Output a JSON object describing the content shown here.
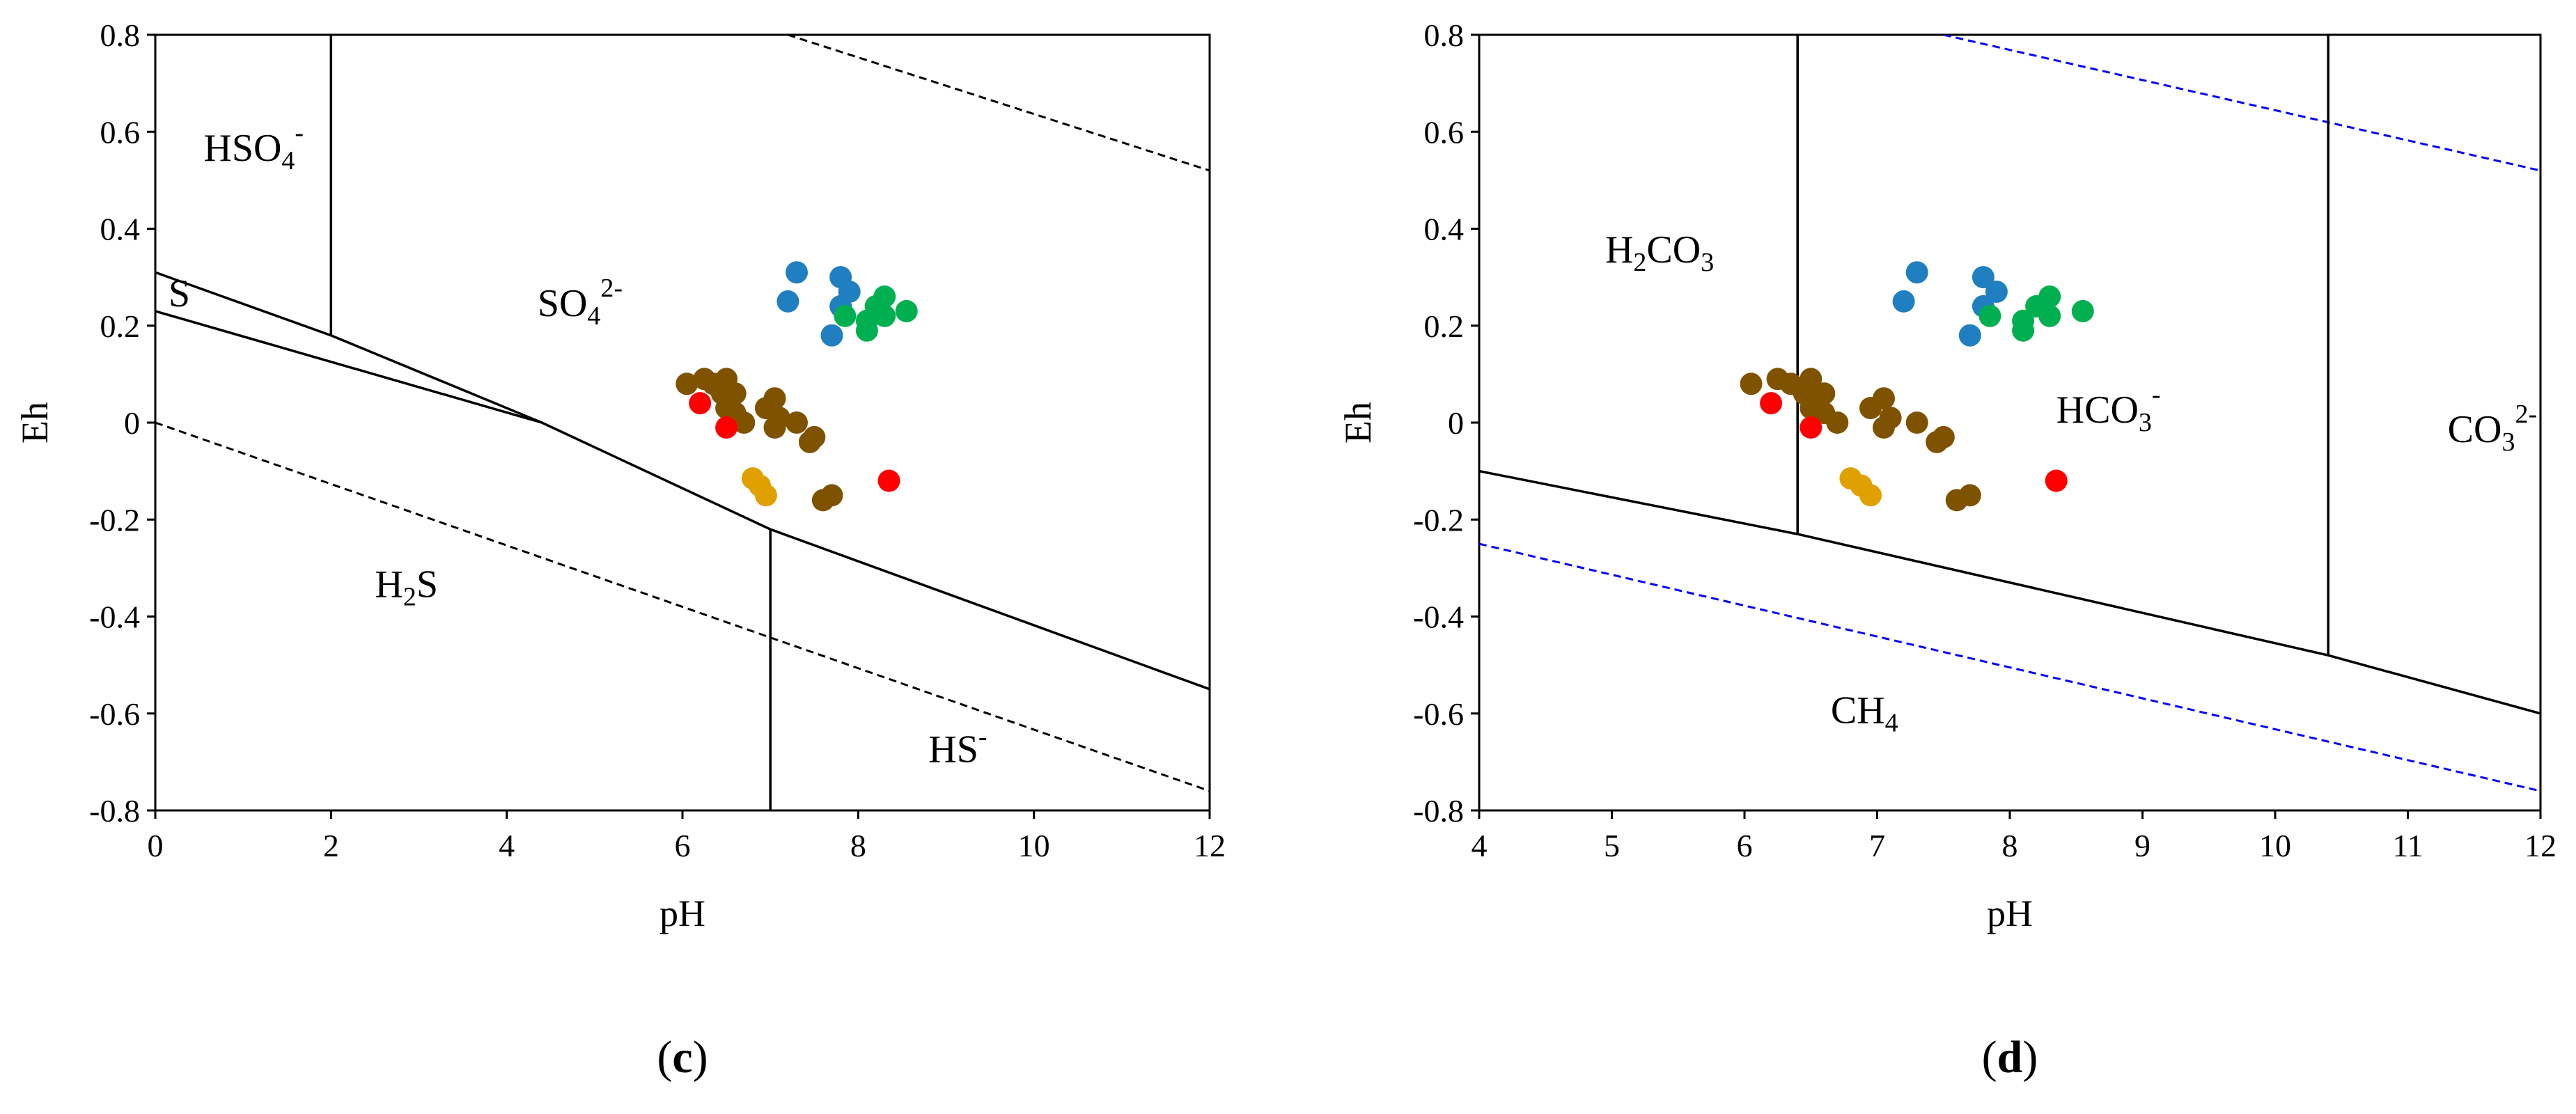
{
  "chart_data": [
    {
      "type": "scatter",
      "panel_label": {
        "open": "(",
        "letter": "c",
        "close": ")"
      },
      "xlabel": "pH",
      "ylabel": "Eh",
      "xlim": [
        0,
        12
      ],
      "ylim": [
        -0.8,
        0.8
      ],
      "xticks": [
        0,
        2,
        4,
        6,
        8,
        10,
        12
      ],
      "yticks": [
        -0.8,
        -0.6,
        -0.4,
        -0.2,
        0,
        0.2,
        0.4,
        0.6,
        0.8
      ],
      "ytick_labels": [
        "-0.8",
        "-0.6",
        "-0.4",
        "-0.2",
        "0",
        "0.2",
        "0.4",
        "0.6",
        "0.8"
      ],
      "grid": false,
      "boundaries": [
        {
          "name": "water-upper-limit",
          "style": "dashed",
          "color": "#000000",
          "points": [
            [
              7.2,
              0.8
            ],
            [
              12,
              0.52
            ]
          ]
        },
        {
          "name": "water-lower-limit",
          "style": "dashed",
          "color": "#000000",
          "points": [
            [
              0,
              0
            ],
            [
              12,
              -0.76
            ]
          ]
        },
        {
          "name": "hso4-so4-boundary",
          "style": "solid",
          "color": "#000000",
          "points": [
            [
              2,
              0.8
            ],
            [
              2,
              0.18
            ]
          ]
        },
        {
          "name": "sulfur-upper-boundary",
          "style": "solid",
          "color": "#000000",
          "points": [
            [
              0,
              0.31
            ],
            [
              2,
              0.18
            ],
            [
              4.4,
              0
            ],
            [
              7,
              -0.22
            ],
            [
              12,
              -0.55
            ]
          ]
        },
        {
          "name": "sulfur-lower-boundary",
          "style": "solid",
          "color": "#000000",
          "points": [
            [
              0,
              0.23
            ],
            [
              4.4,
              0
            ]
          ]
        },
        {
          "name": "h2s-hs-boundary",
          "style": "solid",
          "color": "#000000",
          "points": [
            [
              7,
              -0.22
            ],
            [
              7,
              -0.8
            ]
          ]
        }
      ],
      "region_labels": [
        {
          "base": "HSO",
          "sub": "4",
          "sup": "-",
          "x": 0.55,
          "y": 0.54
        },
        {
          "base": "S",
          "sub": "",
          "sup": "",
          "x": 0.15,
          "y": 0.24
        },
        {
          "base": "SO",
          "sub": "4",
          "sup": "2-",
          "x": 4.35,
          "y": 0.22
        },
        {
          "base": "H",
          "sub": "2",
          "sup": "",
          "after": "S",
          "x": 2.5,
          "y": -0.36
        },
        {
          "base": "HS",
          "sub": "",
          "sup": "-",
          "x": 8.8,
          "y": -0.7
        }
      ],
      "series": [
        {
          "name": "blue",
          "color": "#1f7fc0",
          "points": [
            [
              7.3,
              0.31
            ],
            [
              7.8,
              0.3
            ],
            [
              7.9,
              0.27
            ],
            [
              7.2,
              0.25
            ],
            [
              7.8,
              0.24
            ],
            [
              7.7,
              0.18
            ]
          ]
        },
        {
          "name": "green",
          "color": "#00b050",
          "points": [
            [
              8.3,
              0.26
            ],
            [
              8.2,
              0.24
            ],
            [
              8.55,
              0.23
            ],
            [
              8.3,
              0.22
            ],
            [
              7.85,
              0.22
            ],
            [
              8.1,
              0.21
            ],
            [
              8.1,
              0.19
            ]
          ]
        },
        {
          "name": "brown",
          "color": "#7f5200",
          "points": [
            [
              6.05,
              0.08
            ],
            [
              6.25,
              0.09
            ],
            [
              6.35,
              0.08
            ],
            [
              6.5,
              0.09
            ],
            [
              6.45,
              0.06
            ],
            [
              6.6,
              0.06
            ],
            [
              6.5,
              0.03
            ],
            [
              6.6,
              0.02
            ],
            [
              6.7,
              0.0
            ],
            [
              6.95,
              0.03
            ],
            [
              7.05,
              0.05
            ],
            [
              7.1,
              0.01
            ],
            [
              7.05,
              -0.01
            ],
            [
              7.3,
              0.0
            ],
            [
              7.45,
              -0.04
            ],
            [
              7.5,
              -0.03
            ],
            [
              7.6,
              -0.16
            ],
            [
              7.7,
              -0.15
            ]
          ]
        },
        {
          "name": "red",
          "color": "#ff0000",
          "points": [
            [
              6.2,
              0.04
            ],
            [
              6.5,
              -0.01
            ],
            [
              8.35,
              -0.12
            ]
          ]
        },
        {
          "name": "orange",
          "color": "#e0a000",
          "points": [
            [
              6.8,
              -0.115
            ],
            [
              6.88,
              -0.13
            ],
            [
              6.95,
              -0.15
            ]
          ]
        }
      ]
    },
    {
      "type": "scatter",
      "panel_label": {
        "open": "(",
        "letter": "d",
        "close": ")"
      },
      "xlabel": "pH",
      "ylabel": "Eh",
      "xlim": [
        4,
        12
      ],
      "ylim": [
        -0.8,
        0.8
      ],
      "xticks": [
        4,
        5,
        6,
        7,
        8,
        9,
        10,
        11,
        12
      ],
      "yticks": [
        -0.8,
        -0.6,
        -0.4,
        -0.2,
        0,
        0.2,
        0.4,
        0.6,
        0.8
      ],
      "ytick_labels": [
        "-0.8",
        "-0.6",
        "-0.4",
        "-0.2",
        "0",
        "0.2",
        "0.4",
        "0.6",
        "0.8"
      ],
      "grid": false,
      "boundaries": [
        {
          "name": "water-upper-limit",
          "style": "dashed",
          "color": "#0000ff",
          "points": [
            [
              7.5,
              0.8
            ],
            [
              12,
              0.52
            ]
          ]
        },
        {
          "name": "water-lower-limit",
          "style": "dashed",
          "color": "#0000ff",
          "points": [
            [
              4,
              -0.25
            ],
            [
              12,
              -0.76
            ]
          ]
        },
        {
          "name": "h2co3-hco3-boundary",
          "style": "solid",
          "color": "#000000",
          "points": [
            [
              6.4,
              0.8
            ],
            [
              6.4,
              -0.23
            ]
          ]
        },
        {
          "name": "hco3-co3-boundary",
          "style": "solid",
          "color": "#000000",
          "points": [
            [
              10.4,
              0.8
            ],
            [
              10.4,
              -0.48
            ]
          ]
        },
        {
          "name": "ch4-boundary",
          "style": "solid",
          "color": "#000000",
          "points": [
            [
              4,
              -0.1
            ],
            [
              6.4,
              -0.23
            ],
            [
              10.4,
              -0.48
            ],
            [
              12,
              -0.6
            ]
          ]
        }
      ],
      "region_labels": [
        {
          "base": "H",
          "sub": "2",
          "sup": "",
          "after": "CO",
          "sub2": "3",
          "x": 4.95,
          "y": 0.33
        },
        {
          "base": "HCO",
          "sub": "3",
          "sup": "-",
          "x": 8.35,
          "y": 0.0
        },
        {
          "base": "CO",
          "sub": "3",
          "sup": "2-",
          "x": 11.3,
          "y": -0.04
        },
        {
          "base": "CH",
          "sub": "4",
          "sup": "",
          "x": 6.65,
          "y": -0.62
        }
      ],
      "series": [
        {
          "name": "blue",
          "color": "#1f7fc0",
          "points": [
            [
              7.3,
              0.31
            ],
            [
              7.8,
              0.3
            ],
            [
              7.9,
              0.27
            ],
            [
              7.2,
              0.25
            ],
            [
              7.8,
              0.24
            ],
            [
              7.7,
              0.18
            ]
          ]
        },
        {
          "name": "green",
          "color": "#00b050",
          "points": [
            [
              8.3,
              0.26
            ],
            [
              8.2,
              0.24
            ],
            [
              8.55,
              0.23
            ],
            [
              8.3,
              0.22
            ],
            [
              7.85,
              0.22
            ],
            [
              8.1,
              0.21
            ],
            [
              8.1,
              0.19
            ]
          ]
        },
        {
          "name": "brown",
          "color": "#7f5200",
          "points": [
            [
              6.05,
              0.08
            ],
            [
              6.25,
              0.09
            ],
            [
              6.35,
              0.08
            ],
            [
              6.5,
              0.09
            ],
            [
              6.45,
              0.06
            ],
            [
              6.6,
              0.06
            ],
            [
              6.5,
              0.03
            ],
            [
              6.6,
              0.02
            ],
            [
              6.7,
              0.0
            ],
            [
              6.95,
              0.03
            ],
            [
              7.05,
              0.05
            ],
            [
              7.1,
              0.01
            ],
            [
              7.05,
              -0.01
            ],
            [
              7.3,
              0.0
            ],
            [
              7.45,
              -0.04
            ],
            [
              7.5,
              -0.03
            ],
            [
              7.6,
              -0.16
            ],
            [
              7.7,
              -0.15
            ]
          ]
        },
        {
          "name": "red",
          "color": "#ff0000",
          "points": [
            [
              6.2,
              0.04
            ],
            [
              6.5,
              -0.01
            ],
            [
              8.35,
              -0.12
            ]
          ]
        },
        {
          "name": "orange",
          "color": "#e0a000",
          "points": [
            [
              6.8,
              -0.115
            ],
            [
              6.88,
              -0.13
            ],
            [
              6.95,
              -0.15
            ]
          ]
        }
      ]
    }
  ]
}
